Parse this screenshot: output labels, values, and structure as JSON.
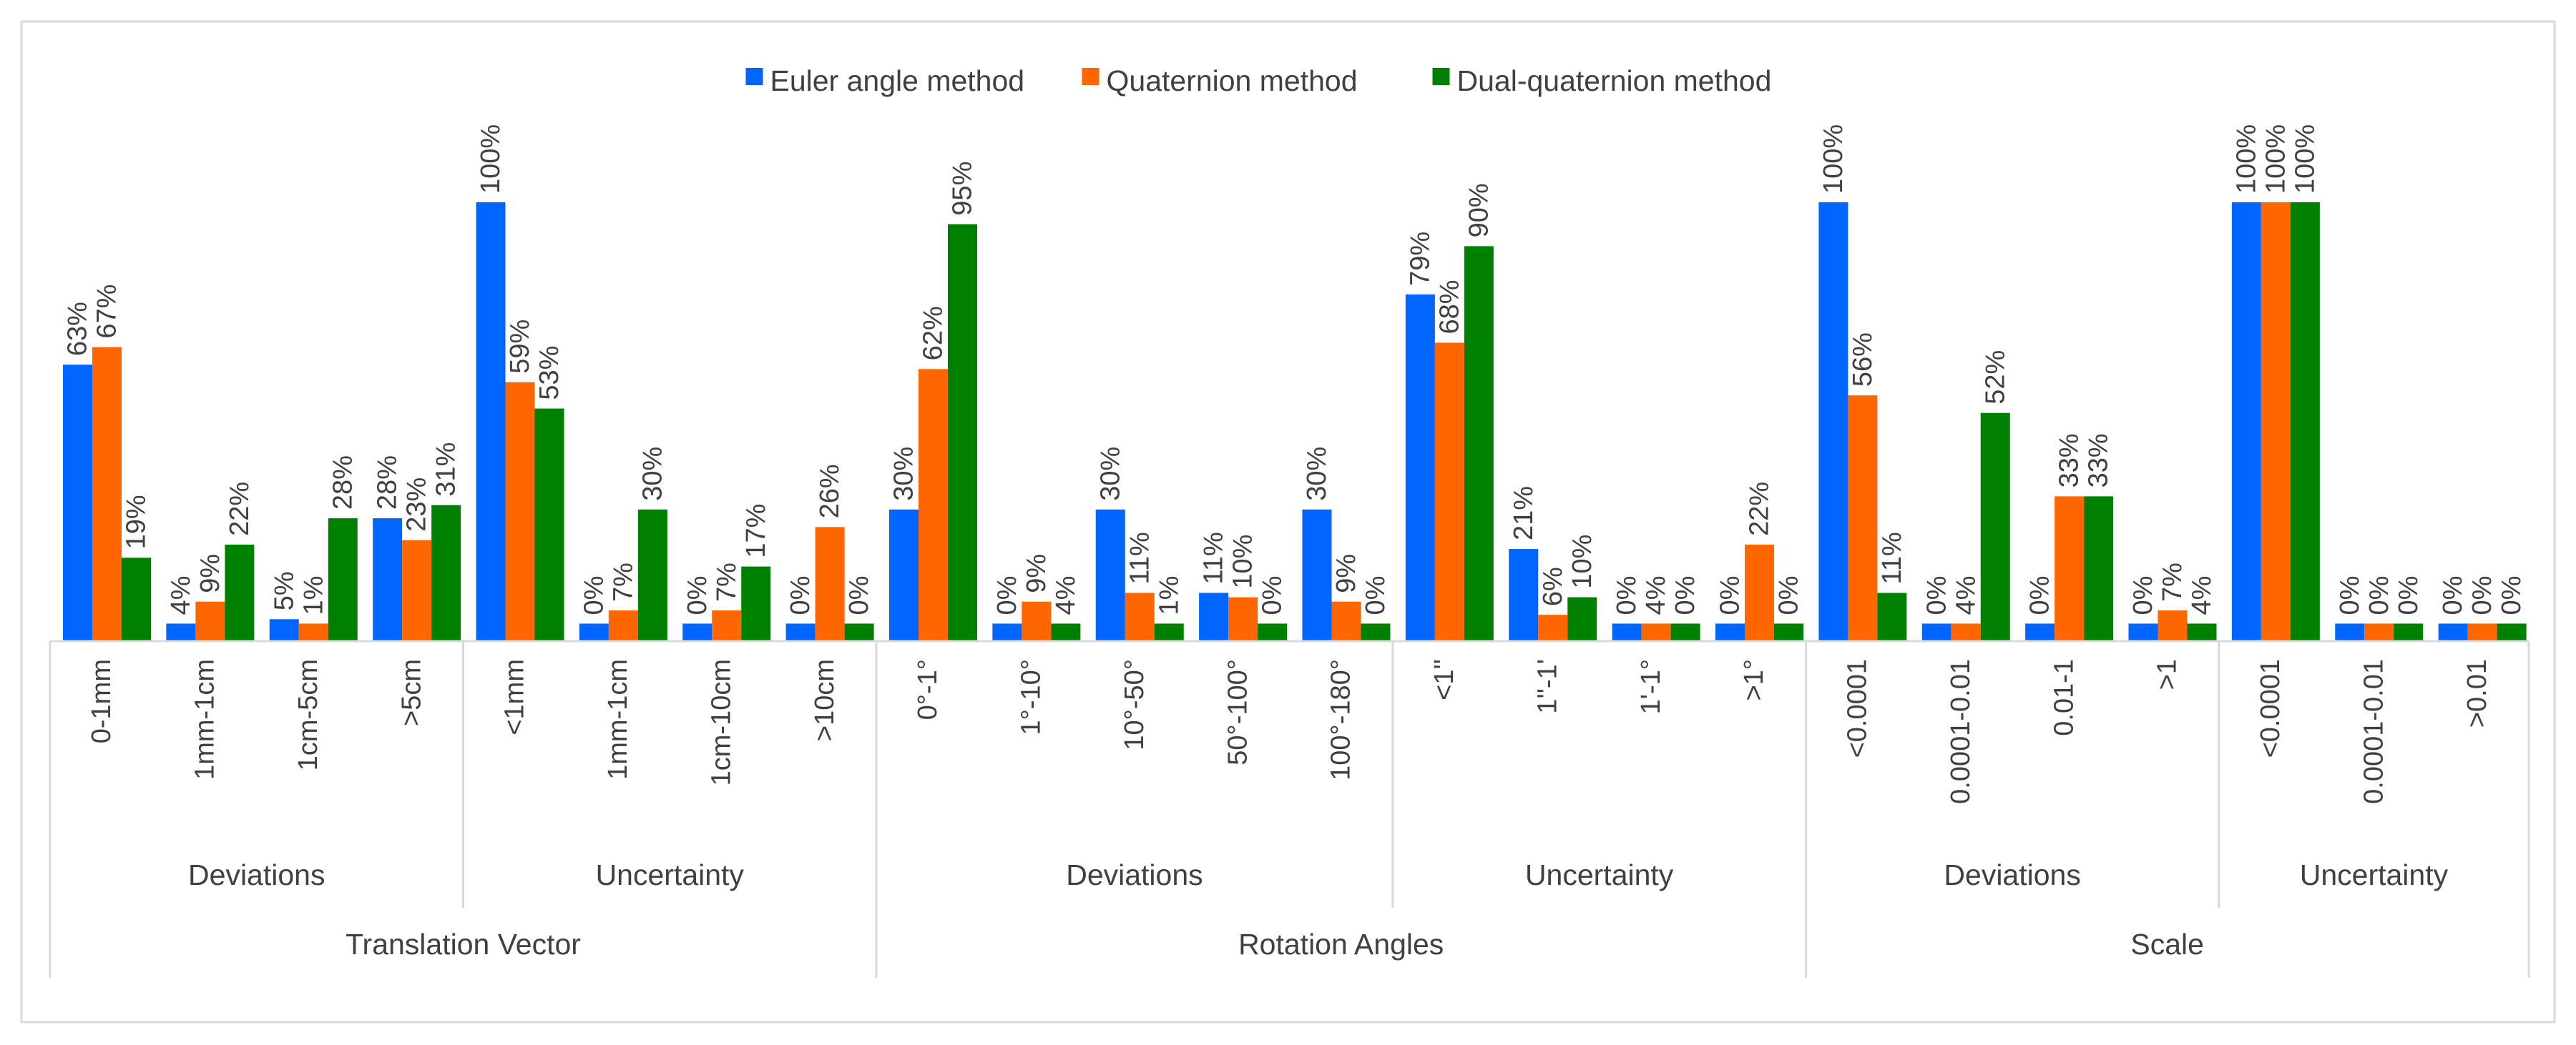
{
  "chart_data": {
    "type": "bar",
    "title": "",
    "xlabel": "",
    "ylabel": "",
    "ylim": [
      0,
      100
    ],
    "grid": false,
    "legend_position": "top",
    "series": [
      {
        "name": "Euler angle method",
        "color": "#0066FF",
        "values": [
          63,
          4,
          5,
          28,
          100,
          0,
          0,
          0,
          30,
          0,
          30,
          11,
          30,
          79,
          21,
          0,
          0,
          100,
          0,
          0,
          0,
          100,
          0,
          0
        ],
        "labels": [
          "63%",
          "4%",
          "5%",
          "28%",
          "100%",
          "0%",
          "0%",
          "0%",
          "30%",
          "0%",
          "30%",
          "11%",
          "30%",
          "79%",
          "21%",
          "0%",
          "0%",
          "100%",
          "0%",
          "0%",
          "0%",
          "100%",
          "0%",
          "0%"
        ]
      },
      {
        "name": "Quaternion method",
        "color": "#FF6600",
        "values": [
          67,
          9,
          1,
          23,
          59,
          7,
          7,
          26,
          62,
          9,
          11,
          10,
          9,
          68,
          6,
          4,
          22,
          56,
          4,
          33,
          7,
          100,
          0,
          0
        ],
        "labels": [
          "67%",
          "9%",
          "1%",
          "23%",
          "59%",
          "7%",
          "7%",
          "26%",
          "62%",
          "9%",
          "11%",
          "10%",
          "9%",
          "68%",
          "6%",
          "4%",
          "22%",
          "56%",
          "4%",
          "33%",
          "7%",
          "100%",
          "0%",
          "0%"
        ]
      },
      {
        "name": "Dual-quaternion method",
        "color": "#008000",
        "values": [
          19,
          22,
          28,
          31,
          53,
          30,
          17,
          0,
          95,
          4,
          1,
          0,
          0,
          90,
          10,
          0,
          0,
          11,
          52,
          33,
          4,
          100,
          0,
          0
        ],
        "labels": [
          "19%",
          "22%",
          "28%",
          "31%",
          "53%",
          "30%",
          "17%",
          "0%",
          "95%",
          "4%",
          "1%",
          "0%",
          "0%",
          "90%",
          "10%",
          "0%",
          "0%",
          "11%",
          "52%",
          "33%",
          "4%",
          "100%",
          "0%",
          "0%"
        ]
      }
    ],
    "categories": [
      "0-1mm",
      "1mm-1cm",
      "1cm-5cm",
      ">5cm",
      "<1mm",
      "1mm-1cm",
      "1cm-10cm",
      ">10cm",
      "0°-1°",
      "1°-10°",
      "10°-50°",
      "50°-100°",
      "100°-180°",
      "<1''",
      "1''-1'",
      "1'-1°",
      ">1°",
      "<0.0001",
      "0.0001-0.01",
      "0.01-1",
      ">1",
      "<0.0001",
      "0.0001-0.01",
      ">0.01"
    ],
    "subgroups": [
      {
        "label": "Deviations",
        "size": 4
      },
      {
        "label": "Uncertainty",
        "size": 4
      },
      {
        "label": "Deviations",
        "size": 5
      },
      {
        "label": "Uncertainty",
        "size": 4
      },
      {
        "label": "Deviations",
        "size": 4
      },
      {
        "label": "Uncertainty",
        "size": 3
      }
    ],
    "groups": [
      {
        "label": "Translation Vector",
        "size": 8
      },
      {
        "label": "Rotation Angles",
        "size": 9
      },
      {
        "label": "Scale",
        "size": 7
      }
    ],
    "zero_bar_min_display": 4
  }
}
